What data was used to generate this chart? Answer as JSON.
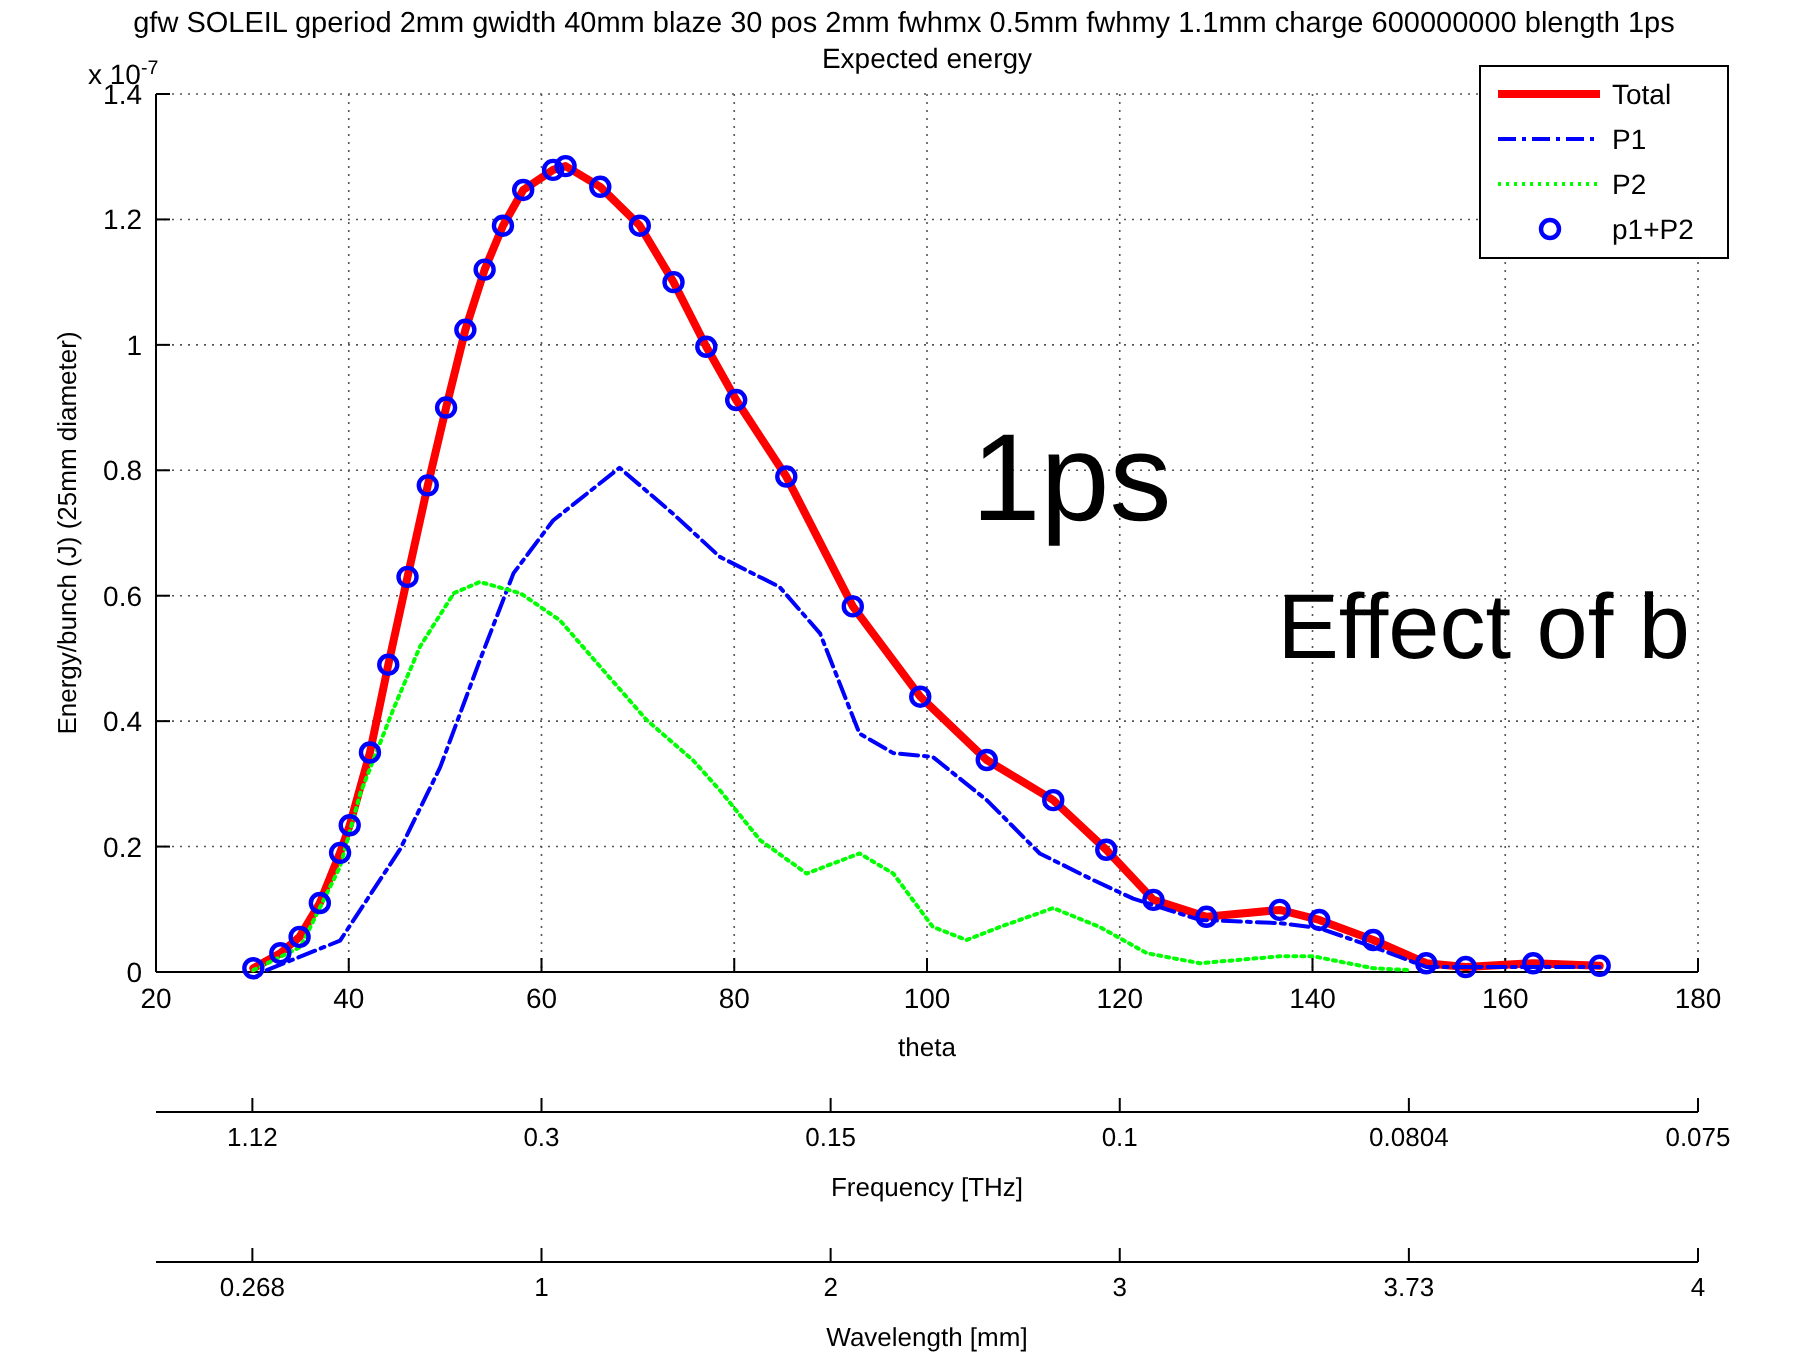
{
  "chart_data": [
    {
      "type": "line",
      "title": "gfw SOLEIL gperiod 2mm gwidth 40mm blaze 30 pos 2mm fwhmx 0.5mm fwhmy 1.1mm charge 600000000 blength 1ps",
      "subtitle": "Expected energy",
      "xlabel": "theta",
      "ylabel": "Energy/bunch (J) (25mm diameter)",
      "annotations": [
        "x 10$^{-7}$",
        "1ps",
        "Effect of b"
      ],
      "xlim": [
        20,
        180
      ],
      "xticks": [
        20,
        40,
        60,
        80,
        100,
        120,
        140,
        160,
        180
      ],
      "ylim": [
        0,
        1.4
      ],
      "yticks": [
        0,
        0.2,
        0.4,
        0.6,
        0.8,
        1,
        1.2,
        1.4
      ],
      "grid": true,
      "legend": "top right",
      "series": [
        {
          "name": "Total",
          "color": "#ff0000",
          "line_style": "solid",
          "marker": "none",
          "x": [
            30.1,
            32.9,
            34.9,
            37,
            39.1,
            40.1,
            42.2,
            44.1,
            46.1,
            48.2,
            50.1,
            52.1,
            54.1,
            56,
            58.1,
            61.2,
            62.5,
            66.1,
            70.2,
            73.7,
            77.1,
            80.2,
            85.4,
            92.3,
            99.3,
            106.2,
            113.1,
            118.6,
            123.5,
            129,
            136.6,
            140.7,
            146.3,
            151.8,
            155.9,
            162.9,
            169.8
          ],
          "values": [
            0.006,
            0.03,
            0.056,
            0.11,
            0.19,
            0.234,
            0.35,
            0.49,
            0.63,
            0.776,
            0.9,
            1.024,
            1.12,
            1.19,
            1.247,
            1.279,
            1.285,
            1.252,
            1.19,
            1.1,
            0.997,
            0.912,
            0.79,
            0.583,
            0.439,
            0.338,
            0.274,
            0.195,
            0.115,
            0.088,
            0.099,
            0.083,
            0.051,
            0.014,
            0.008,
            0.014,
            0.01
          ]
        },
        {
          "name": "P1",
          "color": "#0000ff",
          "line_style": "dashed",
          "marker": "none",
          "x": [
            31.5,
            39.1,
            45.3,
            49.5,
            53.6,
            57.1,
            61.2,
            68.1,
            73.7,
            78.5,
            84.7,
            88.9,
            93,
            96.5,
            100.6,
            106.2,
            111.7,
            117.2,
            121.4,
            128.3,
            136.6,
            140.7,
            146.3,
            151.8,
            160,
            169.8
          ],
          "values": [
            0.003,
            0.05,
            0.195,
            0.327,
            0.497,
            0.636,
            0.72,
            0.804,
            0.73,
            0.662,
            0.614,
            0.54,
            0.38,
            0.349,
            0.343,
            0.274,
            0.189,
            0.147,
            0.117,
            0.083,
            0.078,
            0.07,
            0.04,
            0.008,
            0.008,
            0.008
          ]
        },
        {
          "name": "P2",
          "color": "#00ff00",
          "line_style": "dotted",
          "marker": "none",
          "x": [
            30.1,
            35,
            39.1,
            41.2,
            44.6,
            47.4,
            50.9,
            53.6,
            57.8,
            61.9,
            66.7,
            70.9,
            75.7,
            78.5,
            82.7,
            87.5,
            93,
            96.5,
            100.6,
            104.1,
            107.6,
            113.1,
            117.9,
            122.8,
            128.3,
            136.6,
            140.1,
            146.3,
            150
          ],
          "values": [
            0.003,
            0.04,
            0.168,
            0.285,
            0.418,
            0.519,
            0.604,
            0.622,
            0.604,
            0.561,
            0.476,
            0.402,
            0.338,
            0.29,
            0.21,
            0.157,
            0.189,
            0.157,
            0.072,
            0.051,
            0.072,
            0.102,
            0.072,
            0.03,
            0.014,
            0.025,
            0.025,
            0.006,
            0.003
          ]
        },
        {
          "name": "p1+P2",
          "type": "scatter",
          "color": "#0000ff",
          "marker": "circle",
          "x": [
            30.1,
            32.9,
            34.9,
            37,
            39.1,
            40.1,
            42.2,
            44.1,
            46.1,
            48.2,
            50.1,
            52.1,
            54.1,
            56,
            58.1,
            61.2,
            62.5,
            66.1,
            70.2,
            73.7,
            77.1,
            80.2,
            85.4,
            92.3,
            99.3,
            106.2,
            113.1,
            118.6,
            123.5,
            129,
            136.6,
            140.7,
            146.3,
            151.8,
            155.9,
            162.9,
            169.8
          ],
          "values": [
            0.006,
            0.03,
            0.056,
            0.11,
            0.19,
            0.234,
            0.35,
            0.49,
            0.63,
            0.776,
            0.9,
            1.024,
            1.12,
            1.19,
            1.247,
            1.279,
            1.285,
            1.252,
            1.19,
            1.1,
            0.997,
            0.912,
            0.79,
            0.583,
            0.439,
            0.338,
            0.274,
            0.195,
            0.115,
            0.088,
            0.099,
            0.083,
            0.051,
            0.014,
            0.008,
            0.014,
            0.01
          ]
        }
      ]
    },
    {
      "type": "other",
      "xlabel": "Frequency [THz]",
      "categories": [
        "1.12",
        "0.3",
        "0.15",
        "0.1",
        "0.0804",
        "0.075"
      ]
    },
    {
      "type": "other",
      "xlabel": "Wavelength [mm]",
      "categories": [
        "0.268",
        "1",
        "2",
        "3",
        "3.73",
        "4"
      ]
    }
  ]
}
